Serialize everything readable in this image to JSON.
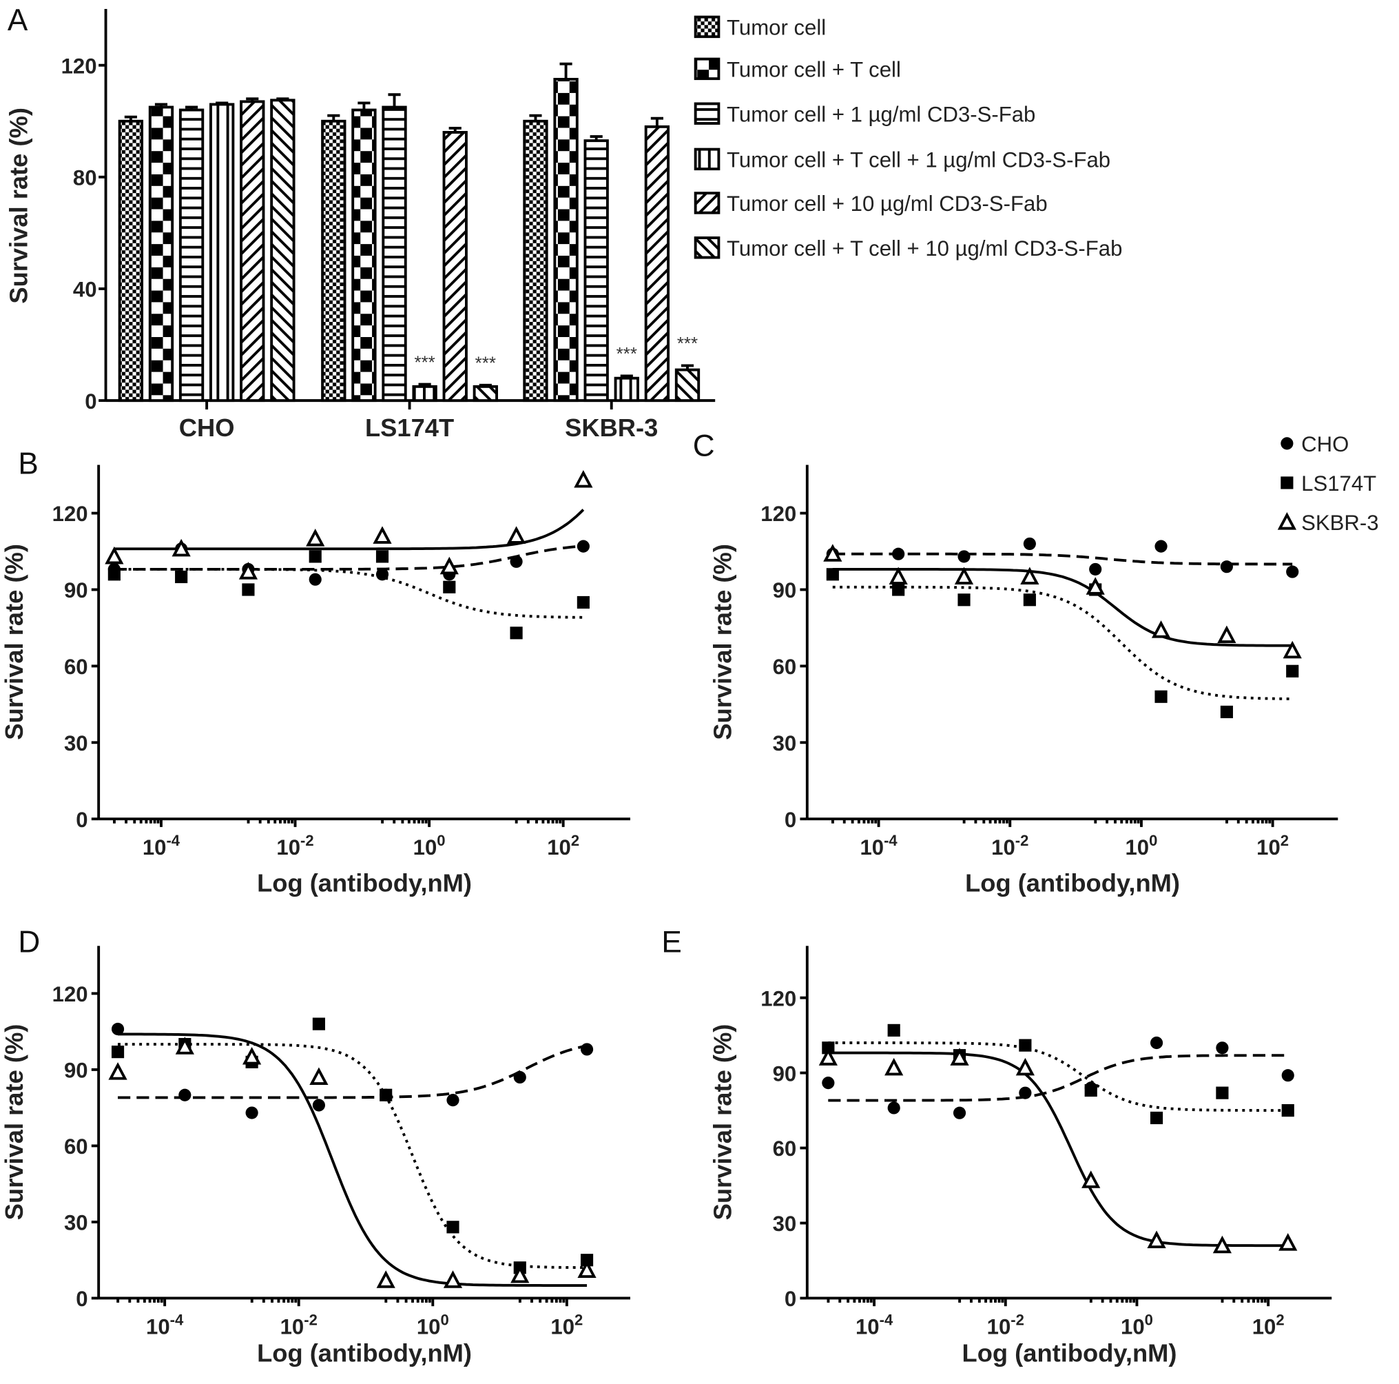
{
  "panel_labels": [
    "A",
    "B",
    "C",
    "D",
    "E"
  ],
  "chart_data": [
    {
      "type": "bar",
      "panel": "A",
      "ylabel": "Survival rate (%)",
      "ylim": [
        0,
        140
      ],
      "yticks": [
        "0",
        "40",
        "80",
        "120"
      ],
      "categories": [
        "CHO",
        "LS174T",
        "SKBR-3"
      ],
      "series": [
        {
          "name": "Tumor cell",
          "pattern": "checker-small",
          "values": [
            100,
            100,
            100
          ],
          "err": [
            1.5,
            2,
            2
          ]
        },
        {
          "name": "Tumor cell + T cell",
          "pattern": "checker-large",
          "values": [
            105,
            104,
            115
          ],
          "err": [
            1,
            2.5,
            5.5
          ]
        },
        {
          "name": "Tumor cell + 1 µg/ml CD3-S-Fab",
          "pattern": "horizontal",
          "values": [
            104,
            105,
            93
          ],
          "err": [
            1,
            4.5,
            1.5
          ]
        },
        {
          "name": "Tumor cell + T cell + 1 µg/ml CD3-S-Fab",
          "pattern": "vertical",
          "values": [
            106,
            5,
            8
          ],
          "err": [
            0.5,
            0.8,
            0.8
          ]
        },
        {
          "name": "Tumor cell + 10 µg/ml CD3-S-Fab",
          "pattern": "diag-up",
          "values": [
            107,
            96,
            98
          ],
          "err": [
            1,
            1.5,
            3
          ]
        },
        {
          "name": "Tumor cell + T cell + 10 µg/ml CD3-S-Fab",
          "pattern": "diag-down",
          "values": [
            107.5,
            5,
            11
          ],
          "err": [
            0.5,
            0.5,
            1.5
          ]
        }
      ],
      "annotations": [
        {
          "category": "LS174T",
          "series": 3,
          "text": "***"
        },
        {
          "category": "LS174T",
          "series": 5,
          "text": "***"
        },
        {
          "category": "SKBR-3",
          "series": 3,
          "text": "***"
        },
        {
          "category": "SKBR-3",
          "series": 5,
          "text": "***"
        }
      ]
    },
    {
      "type": "scatter",
      "panel": "B",
      "xlabel": "Log (antibody,nM)",
      "ylabel": "Survival rate (%)",
      "ylim": [
        0,
        140
      ],
      "yticks": [
        "0",
        "30",
        "60",
        "90",
        "120"
      ],
      "xticks": [
        {
          "base": "10",
          "exp": "-4"
        },
        {
          "base": "10",
          "exp": "-2"
        },
        {
          "base": "10",
          "exp": "0"
        },
        {
          "base": "10",
          "exp": "2"
        }
      ],
      "log_x": [
        -4.7,
        -3.7,
        -2.7,
        -1.7,
        -0.7,
        0.3,
        1.3,
        2.3
      ],
      "series": [
        {
          "name": "CHO",
          "marker": "circle",
          "line": "dashed",
          "values": [
            98,
            106,
            98,
            94,
            96,
            96,
            101,
            107
          ],
          "fit": {
            "top": 98,
            "bottom": 108,
            "logEC50": 1.3,
            "hill": 1
          }
        },
        {
          "name": "LS174T",
          "marker": "square",
          "line": "dotted",
          "values": [
            96,
            95,
            90,
            103,
            103,
            91,
            73,
            85
          ],
          "fit": {
            "top": 98,
            "bottom": 79,
            "logEC50": 0,
            "hill": 1
          }
        },
        {
          "name": "SKBR-3",
          "marker": "triangle",
          "line": "solid",
          "values": [
            103,
            106,
            97,
            110,
            111,
            99,
            111,
            133
          ],
          "fit": {
            "top": 106,
            "bottom": 170,
            "logEC50": 2.8,
            "hill": 1
          }
        }
      ]
    },
    {
      "type": "scatter",
      "panel": "C",
      "xlabel": "Log (antibody,nM)",
      "ylabel": "Survival rate (%)",
      "ylim": [
        0,
        140
      ],
      "yticks": [
        "0",
        "30",
        "60",
        "90",
        "120"
      ],
      "xticks": [
        {
          "base": "10",
          "exp": "-4"
        },
        {
          "base": "10",
          "exp": "-2"
        },
        {
          "base": "10",
          "exp": "0"
        },
        {
          "base": "10",
          "exp": "2"
        }
      ],
      "log_x": [
        -4.7,
        -3.7,
        -2.7,
        -1.7,
        -0.7,
        0.3,
        1.3,
        2.3
      ],
      "legend": [
        "CHO",
        "LS174T",
        "SKBR-3"
      ],
      "series": [
        {
          "name": "CHO",
          "marker": "circle",
          "line": "dashed",
          "values": [
            104,
            104,
            103,
            108,
            98,
            107,
            99,
            97
          ],
          "fit": {
            "top": 104,
            "bottom": 100,
            "logEC50": -0.5,
            "hill": 1
          }
        },
        {
          "name": "LS174T",
          "marker": "square",
          "line": "dotted",
          "values": [
            96,
            90,
            86,
            86,
            90,
            48,
            42,
            58
          ],
          "fit": {
            "top": 91,
            "bottom": 47,
            "logEC50": -0.3,
            "hill": 1
          }
        },
        {
          "name": "SKBR-3",
          "marker": "triangle",
          "line": "solid",
          "values": [
            104,
            95,
            95,
            95,
            91,
            74,
            72,
            66
          ],
          "fit": {
            "top": 98,
            "bottom": 68,
            "logEC50": -0.4,
            "hill": 1.2
          }
        }
      ]
    },
    {
      "type": "scatter",
      "panel": "D",
      "xlabel": "Log (antibody,nM)",
      "ylabel": "Survival rate (%)",
      "ylim": [
        0,
        140
      ],
      "yticks": [
        "0",
        "30",
        "60",
        "90",
        "120"
      ],
      "xticks": [
        {
          "base": "10",
          "exp": "-4"
        },
        {
          "base": "10",
          "exp": "-2"
        },
        {
          "base": "10",
          "exp": "0"
        },
        {
          "base": "10",
          "exp": "2"
        }
      ],
      "log_x": [
        -4.7,
        -3.7,
        -2.7,
        -1.7,
        -0.7,
        0.3,
        1.3,
        2.3
      ],
      "series": [
        {
          "name": "CHO",
          "marker": "circle",
          "line": "dashed",
          "values": [
            106,
            80,
            73,
            76,
            80,
            78,
            87,
            98
          ],
          "fit": {
            "top": 79,
            "bottom": 102,
            "logEC50": 1.4,
            "hill": 1
          }
        },
        {
          "name": "LS174T",
          "marker": "square",
          "line": "dotted",
          "values": [
            97,
            100,
            93,
            108,
            80,
            28,
            12,
            15
          ],
          "fit": {
            "top": 100,
            "bottom": 12,
            "logEC50": -0.3,
            "hill": 1.3
          }
        },
        {
          "name": "SKBR-3",
          "marker": "triangle",
          "line": "solid",
          "values": [
            89,
            99,
            95,
            87,
            7,
            7,
            9,
            11
          ],
          "fit": {
            "top": 104,
            "bottom": 5,
            "logEC50": -1.5,
            "hill": 1.2
          }
        }
      ]
    },
    {
      "type": "scatter",
      "panel": "E",
      "xlabel": "Log (antibody,nM)",
      "ylabel": "Survival rate (%)",
      "ylim": [
        0,
        140
      ],
      "yticks": [
        "0",
        "30",
        "60",
        "90",
        "120"
      ],
      "xticks": [
        {
          "base": "10",
          "exp": "-4"
        },
        {
          "base": "10",
          "exp": "-2"
        },
        {
          "base": "10",
          "exp": "0"
        },
        {
          "base": "10",
          "exp": "2"
        }
      ],
      "log_x": [
        -4.7,
        -3.7,
        -2.7,
        -1.7,
        -0.7,
        0.3,
        1.3,
        2.3
      ],
      "series": [
        {
          "name": "CHO",
          "marker": "circle",
          "line": "dashed",
          "values": [
            86,
            76,
            74,
            82,
            84,
            102,
            100,
            89
          ],
          "fit": {
            "top": 79,
            "bottom": 97,
            "logEC50": -0.8,
            "hill": 1.2
          }
        },
        {
          "name": "LS174T",
          "marker": "square",
          "line": "dotted",
          "values": [
            100,
            107,
            97,
            101,
            83,
            72,
            82,
            75
          ],
          "fit": {
            "top": 102,
            "bottom": 75,
            "logEC50": -0.8,
            "hill": 1.2
          }
        },
        {
          "name": "SKBR-3",
          "marker": "triangle",
          "line": "solid",
          "values": [
            96,
            92,
            96,
            92,
            47,
            23,
            21,
            22
          ],
          "fit": {
            "top": 98,
            "bottom": 21,
            "logEC50": -1,
            "hill": 1.3
          }
        }
      ]
    }
  ]
}
